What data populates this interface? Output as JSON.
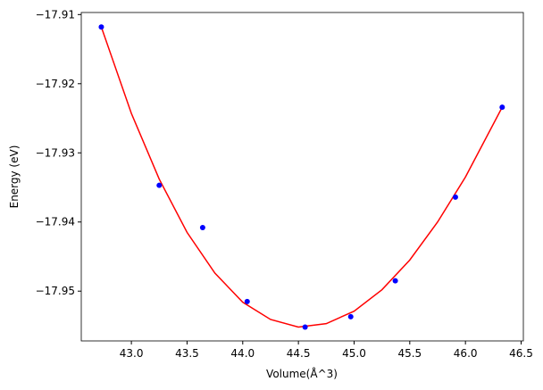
{
  "chart_data": {
    "type": "scatter",
    "x_label": "Volume(Å^3)",
    "y_label": "Energy (eV)",
    "xlim": [
      42.55,
      46.52
    ],
    "ylim": [
      -17.9572,
      -17.9097
    ],
    "xticks": [
      {
        "value": 43.0,
        "label": "43.0"
      },
      {
        "value": 43.5,
        "label": "43.5"
      },
      {
        "value": 44.0,
        "label": "44.0"
      },
      {
        "value": 44.5,
        "label": "44.5"
      },
      {
        "value": 45.0,
        "label": "45.0"
      },
      {
        "value": 45.5,
        "label": "45.5"
      },
      {
        "value": 46.0,
        "label": "46.0"
      },
      {
        "value": 46.5,
        "label": "46.5"
      }
    ],
    "yticks": [
      {
        "value": -17.91,
        "label": "−17.91"
      },
      {
        "value": -17.92,
        "label": "−17.92"
      },
      {
        "value": -17.93,
        "label": "−17.93"
      },
      {
        "value": -17.94,
        "label": "−17.94"
      },
      {
        "value": -17.95,
        "label": "−17.95"
      }
    ],
    "series": [
      {
        "style": "line",
        "color": "red",
        "x": [
          42.73,
          43.0,
          43.25,
          43.5,
          43.75,
          44.0,
          44.25,
          44.5,
          44.75,
          45.0,
          45.25,
          45.5,
          45.75,
          46.0,
          46.33
        ],
        "values": [
          -17.9118,
          -17.9243,
          -17.9338,
          -17.9415,
          -17.9474,
          -17.9516,
          -17.9541,
          -17.9552,
          -17.9547,
          -17.9529,
          -17.9498,
          -17.9455,
          -17.94,
          -17.9335,
          -17.9234
        ]
      },
      {
        "style": "marker",
        "color": "blue",
        "x": [
          42.73,
          43.25,
          43.64,
          44.04,
          44.56,
          44.97,
          45.37,
          45.91,
          46.33
        ],
        "values": [
          -17.9118,
          -17.9347,
          -17.9408,
          -17.9515,
          -17.9552,
          -17.9537,
          -17.9485,
          -17.9364,
          -17.9234
        ]
      }
    ]
  }
}
